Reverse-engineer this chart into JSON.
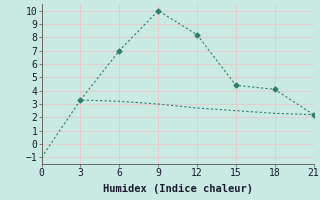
{
  "xlabel": "Humidex (Indice chaleur)",
  "bg_color": "#c8eae2",
  "grid_color": "#d4ebe4",
  "line_color": "#2e7d6e",
  "line1_x": [
    0,
    3,
    6,
    9,
    12,
    15,
    18,
    21
  ],
  "line1_y": [
    -1.0,
    3.3,
    3.2,
    3.0,
    2.7,
    2.5,
    2.3,
    2.2
  ],
  "line2_x": [
    3,
    6,
    9,
    12,
    15,
    18,
    21
  ],
  "line2_y": [
    3.3,
    7.0,
    10.0,
    8.2,
    4.4,
    4.1,
    2.2
  ],
  "xlim": [
    0,
    21
  ],
  "ylim": [
    -1.5,
    10.5
  ],
  "xticks": [
    0,
    3,
    6,
    9,
    12,
    15,
    18,
    21
  ],
  "yticks": [
    -1,
    0,
    1,
    2,
    3,
    4,
    5,
    6,
    7,
    8,
    9,
    10
  ],
  "font_family": "monospace",
  "fontsize_label": 7.5,
  "fontsize_tick": 7
}
